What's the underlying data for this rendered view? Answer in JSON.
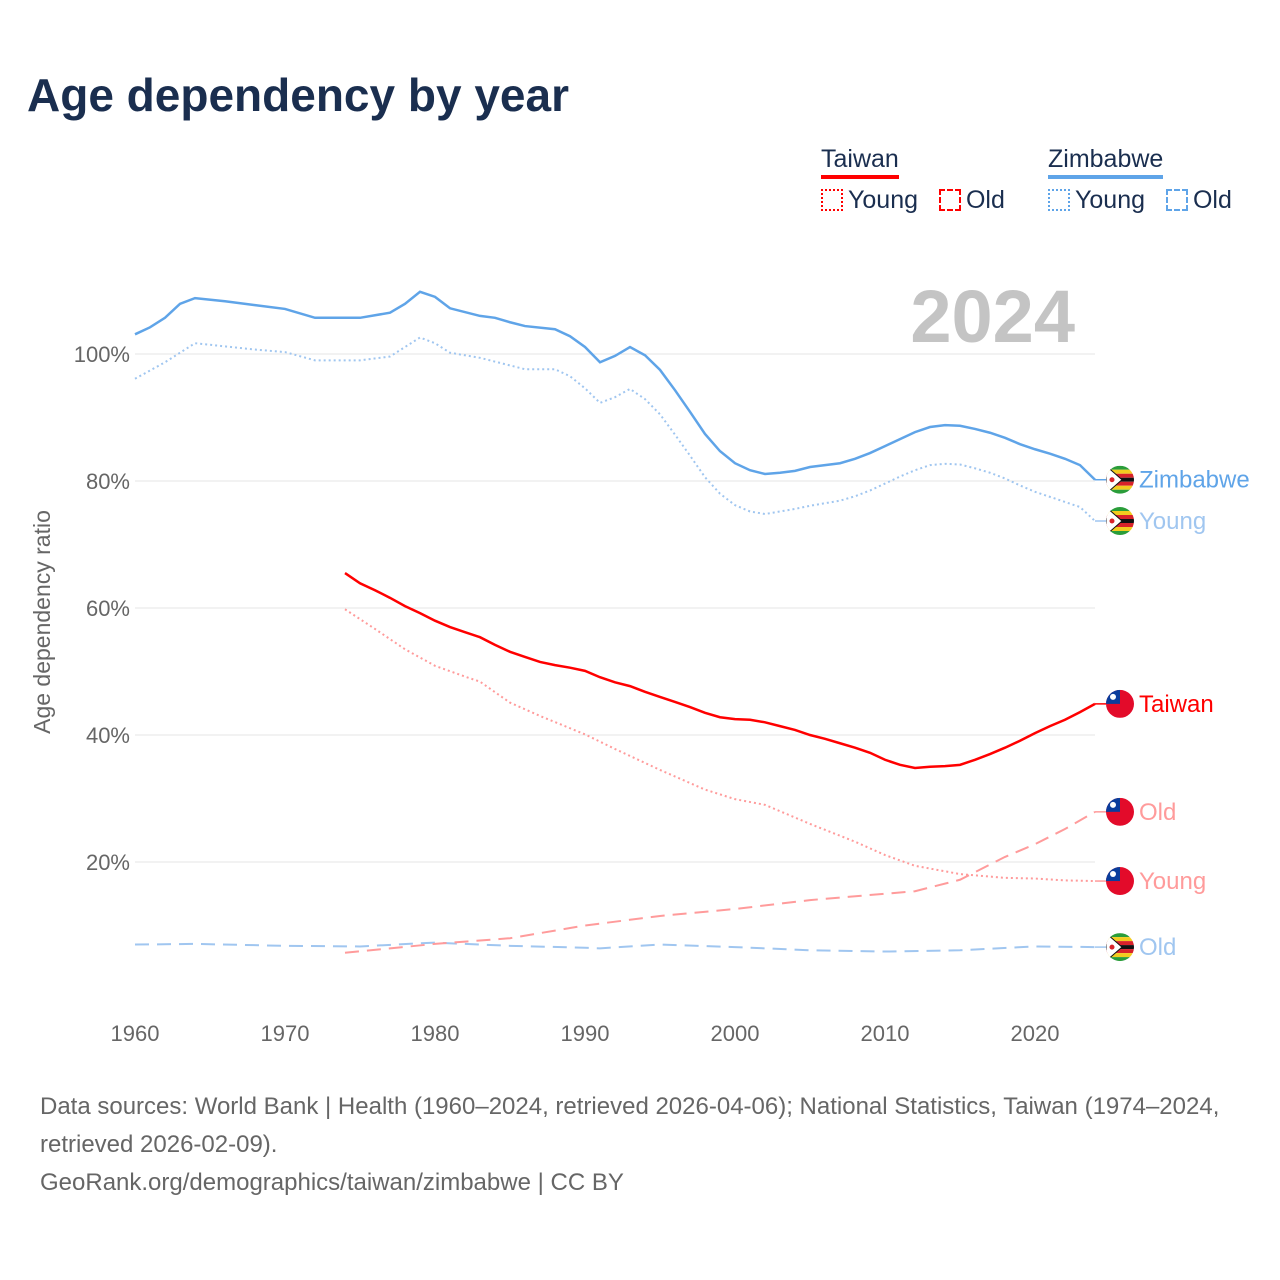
{
  "title": "Age dependency by year",
  "year_watermark": "2024",
  "legend": {
    "groups": [
      {
        "country": "Taiwan",
        "color": "#ff0000",
        "items": [
          "Young",
          "Old"
        ]
      },
      {
        "country": "Zimbabwe",
        "color": "#5fa4e8",
        "items": [
          "Young",
          "Old"
        ]
      }
    ]
  },
  "footer": {
    "sources": "Data sources: World Bank | Health (1960–2024, retrieved 2026-04-06); National Statistics, Taiwan (1974–2024, retrieved 2026-02-09).",
    "link": "GeoRank.org/demographics/taiwan/zimbabwe | CC BY"
  },
  "chart_data": {
    "type": "line",
    "title": "Age dependency by year",
    "xlabel": "",
    "ylabel": "Age dependency ratio",
    "xlim": [
      1960,
      2024
    ],
    "ylim": [
      0,
      110
    ],
    "xticks": [
      1960,
      1970,
      1980,
      1990,
      2000,
      2010,
      2020
    ],
    "yticks": [
      {
        "v": 20,
        "label": "20%"
      },
      {
        "v": 40,
        "label": "40%"
      },
      {
        "v": 60,
        "label": "60%"
      },
      {
        "v": 80,
        "label": "80%"
      },
      {
        "v": 100,
        "label": "100%"
      }
    ],
    "series": [
      {
        "name": "Zimbabwe",
        "label": "Zimbabwe",
        "style": "solid",
        "color": "#5fa4e8",
        "flag": "zimbabwe",
        "x": [
          1960,
          1961,
          1962,
          1963,
          1964,
          1966,
          1968,
          1970,
          1972,
          1975,
          1977,
          1978,
          1979,
          1980,
          1981,
          1983,
          1984,
          1985,
          1986,
          1988,
          1989,
          1990,
          1991,
          1992,
          1993,
          1994,
          1995,
          1996,
          1997,
          1998,
          1999,
          2000,
          2001,
          2002,
          2003,
          2004,
          2005,
          2007,
          2008,
          2009,
          2010,
          2011,
          2012,
          2013,
          2014,
          2015,
          2016,
          2017,
          2018,
          2019,
          2020,
          2021,
          2022,
          2023,
          2024
        ],
        "y": [
          103.1,
          104.2,
          105.7,
          107.9,
          108.8,
          108.3,
          107.7,
          107.1,
          105.7,
          105.7,
          106.5,
          107.9,
          109.8,
          109,
          107.2,
          106,
          105.7,
          105,
          104.4,
          103.9,
          102.8,
          101.1,
          98.7,
          99.7,
          101.1,
          99.8,
          97.5,
          94.3,
          90.9,
          87.4,
          84.7,
          82.8,
          81.7,
          81.1,
          81.3,
          81.6,
          82.2,
          82.8,
          83.5,
          84.4,
          85.5,
          86.6,
          87.7,
          88.5,
          88.8,
          88.7,
          88.2,
          87.6,
          86.8,
          85.8,
          85,
          84.3,
          83.5,
          82.5,
          80.2
        ]
      },
      {
        "name": "Zimbabwe Young",
        "label": "Young",
        "style": "dotted",
        "color": "#a0c6f0",
        "flag": "zimbabwe",
        "x": [
          1960,
          1962,
          1964,
          1966,
          1968,
          1970,
          1972,
          1975,
          1977,
          1979,
          1980,
          1981,
          1983,
          1985,
          1986,
          1988,
          1989,
          1990,
          1991,
          1992,
          1993,
          1994,
          1995,
          1996,
          1997,
          1998,
          1999,
          2000,
          2001,
          2002,
          2003,
          2004,
          2005,
          2007,
          2008,
          2009,
          2010,
          2011,
          2012,
          2013,
          2014,
          2015,
          2016,
          2017,
          2018,
          2019,
          2020,
          2021,
          2022,
          2023,
          2024
        ],
        "y": [
          96.1,
          98.7,
          101.7,
          101.2,
          100.7,
          100.3,
          99,
          99,
          99.6,
          102.6,
          101.7,
          100.2,
          99.4,
          98.2,
          97.6,
          97.6,
          96.5,
          94.6,
          92.3,
          93.2,
          94.5,
          92.9,
          90.5,
          87.3,
          84,
          80.6,
          78,
          76.2,
          75.2,
          74.8,
          75.2,
          75.6,
          76.1,
          76.9,
          77.6,
          78.5,
          79.6,
          80.7,
          81.7,
          82.5,
          82.7,
          82.6,
          82,
          81.3,
          80.4,
          79.3,
          78.3,
          77.5,
          76.7,
          75.9,
          73.7
        ]
      },
      {
        "name": "Zimbabwe Old",
        "label": "Old",
        "style": "dashed",
        "color": "#a0c6f0",
        "flag": "zimbabwe",
        "x": [
          1960,
          1964,
          1970,
          1975,
          1979,
          1980,
          1985,
          1990,
          1991,
          1995,
          2000,
          2005,
          2010,
          2015,
          2020,
          2024
        ],
        "y": [
          7.0,
          7.1,
          6.8,
          6.7,
          7.2,
          7.3,
          6.8,
          6.5,
          6.4,
          7.0,
          6.6,
          6.1,
          5.9,
          6.1,
          6.7,
          6.6
        ]
      },
      {
        "name": "Taiwan",
        "label": "Taiwan",
        "style": "solid",
        "color": "#ff0000",
        "flag": "taiwan",
        "x": [
          1974,
          1975,
          1976,
          1977,
          1978,
          1979,
          1980,
          1981,
          1982,
          1983,
          1984,
          1985,
          1986,
          1987,
          1988,
          1989,
          1990,
          1991,
          1992,
          1993,
          1994,
          1995,
          1996,
          1997,
          1998,
          1999,
          2000,
          2001,
          2002,
          2003,
          2004,
          2005,
          2006,
          2007,
          2008,
          2009,
          2010,
          2011,
          2012,
          2013,
          2014,
          2015,
          2016,
          2017,
          2018,
          2019,
          2020,
          2021,
          2022,
          2023,
          2024
        ],
        "y": [
          65.5,
          63.9,
          62.8,
          61.6,
          60.3,
          59.2,
          58,
          57,
          56.2,
          55.4,
          54.2,
          53.1,
          52.3,
          51.5,
          51,
          50.6,
          50.1,
          49.1,
          48.3,
          47.7,
          46.8,
          46,
          45.2,
          44.4,
          43.5,
          42.8,
          42.5,
          42.4,
          42,
          41.4,
          40.8,
          40,
          39.4,
          38.7,
          38,
          37.2,
          36.1,
          35.3,
          34.8,
          35,
          35.1,
          35.3,
          36.1,
          37,
          38,
          39.1,
          40.3,
          41.4,
          42.4,
          43.6,
          44.9
        ]
      },
      {
        "name": "Taiwan Old",
        "label": "Old",
        "style": "dashed",
        "color": "#ff9b9b",
        "flag": "taiwan",
        "x": [
          1974,
          1980,
          1985,
          1990,
          1995,
          2000,
          2005,
          2010,
          2012,
          2015,
          2018,
          2020,
          2022,
          2024
        ],
        "y": [
          5.7,
          7.1,
          8,
          10,
          11.5,
          12.6,
          14,
          15,
          15.4,
          17.2,
          20.8,
          22.8,
          25.2,
          27.9
        ]
      },
      {
        "name": "Taiwan Young",
        "label": "Young",
        "style": "dotted",
        "color": "#ff9b9b",
        "flag": "taiwan",
        "x": [
          1974,
          1976,
          1978,
          1980,
          1982,
          1983,
          1985,
          1987,
          1990,
          1992,
          1995,
          1998,
          2000,
          2002,
          2005,
          2008,
          2010,
          2012,
          2015,
          2018,
          2020,
          2022,
          2024
        ],
        "y": [
          59.8,
          56.7,
          53.5,
          50.9,
          49.2,
          48.4,
          45.1,
          43,
          40.1,
          37.8,
          34.5,
          31.4,
          29.9,
          29,
          26,
          23.2,
          21.1,
          19.4,
          18.1,
          17.5,
          17.4,
          17.1,
          17
        ]
      }
    ]
  }
}
